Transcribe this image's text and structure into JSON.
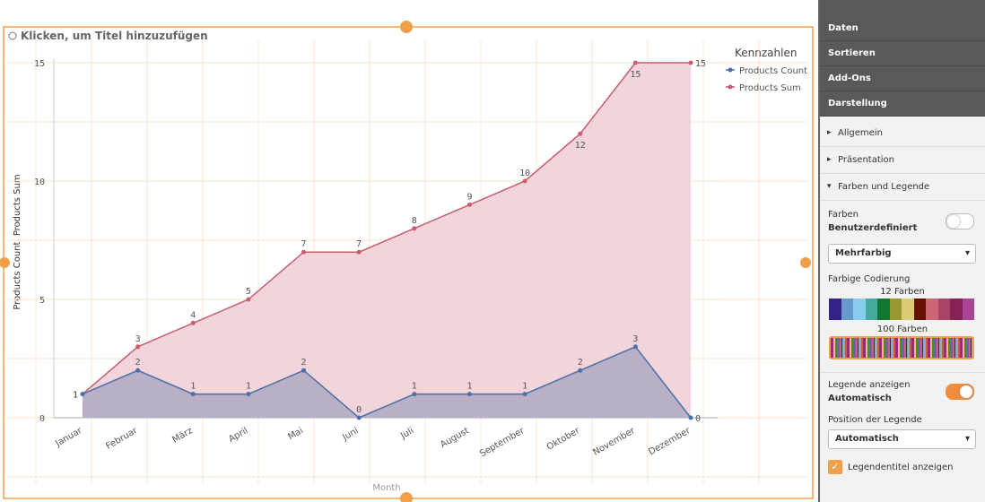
{
  "chart_data": {
    "type": "area",
    "title": "Klicken, um Titel hinzuzufügen",
    "x_label": "Month",
    "y_label": "Products Count, Products Sum",
    "legend_title": "Kennzahlen",
    "legend": "right",
    "categories": [
      "Januar",
      "Februar",
      "März",
      "April",
      "Mai",
      "Juni",
      "Juli",
      "August",
      "September",
      "Oktober",
      "November",
      "Dezember"
    ],
    "series": [
      {
        "name": "Products Count",
        "color": "#4b6fa6",
        "fill": "#b3abc4",
        "values": [
          1,
          2,
          1,
          1,
          2,
          0,
          1,
          1,
          1,
          2,
          3,
          0
        ]
      },
      {
        "name": "Products Sum",
        "color": "#c85d6d",
        "fill": "#f0d0d6",
        "values": [
          1,
          3,
          4,
          5,
          7,
          7,
          8,
          9,
          10,
          12,
          15,
          15
        ]
      }
    ],
    "ylim": [
      0,
      15
    ],
    "yticks": [
      0,
      5,
      10,
      15
    ],
    "grid": true
  },
  "panel": {
    "tabs": [
      "Daten",
      "Sortieren",
      "Add-Ons",
      "Darstellung"
    ],
    "sections": [
      "Allgemein",
      "Präsentation",
      "Farben und Legende"
    ],
    "colors_label": "Farben",
    "colors_value": "Benutzerdefiniert",
    "color_mode": "Mehrfarbig",
    "coding_label": "Farbige Codierung",
    "palette_12": "12 Farben",
    "palette_100": "100 Farben",
    "legend_label": "Legende anzeigen",
    "legend_value": "Automatisch",
    "position_label": "Position der Legende",
    "position_value": "Automatisch",
    "legend_title_option": "Legendentitel anzeigen"
  }
}
